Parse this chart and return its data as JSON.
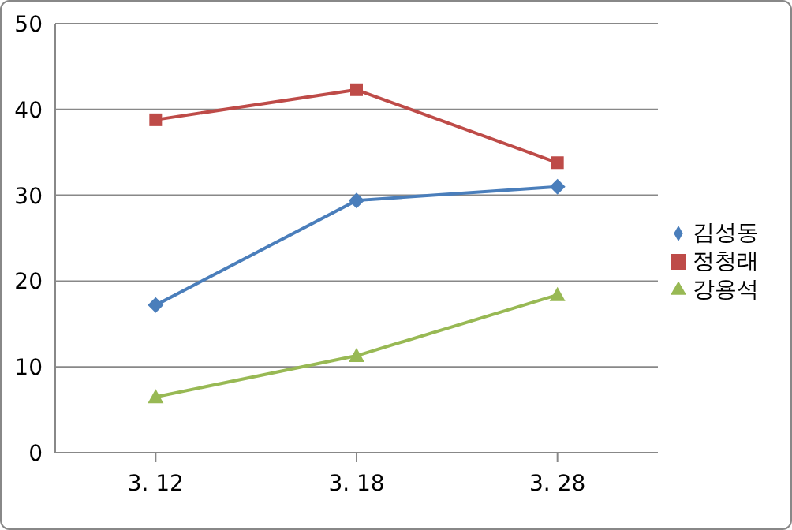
{
  "chart_data": {
    "type": "line",
    "categories": [
      "3. 12",
      "3. 18",
      "3. 28"
    ],
    "series": [
      {
        "name": "김성동",
        "color": "#4a7ebb",
        "values": [
          17.2,
          29.4,
          31.0
        ],
        "marker": "diamond"
      },
      {
        "name": "정청래",
        "color": "#be4b48",
        "values": [
          38.8,
          42.3,
          33.8
        ],
        "marker": "square"
      },
      {
        "name": "강용석",
        "color": "#98b954",
        "values": [
          6.5,
          11.3,
          18.4
        ],
        "marker": "triangle"
      }
    ],
    "ylim": [
      0,
      50
    ],
    "yticks": [
      0,
      10,
      20,
      30,
      40,
      50
    ],
    "grid": "y",
    "legend": "right"
  }
}
